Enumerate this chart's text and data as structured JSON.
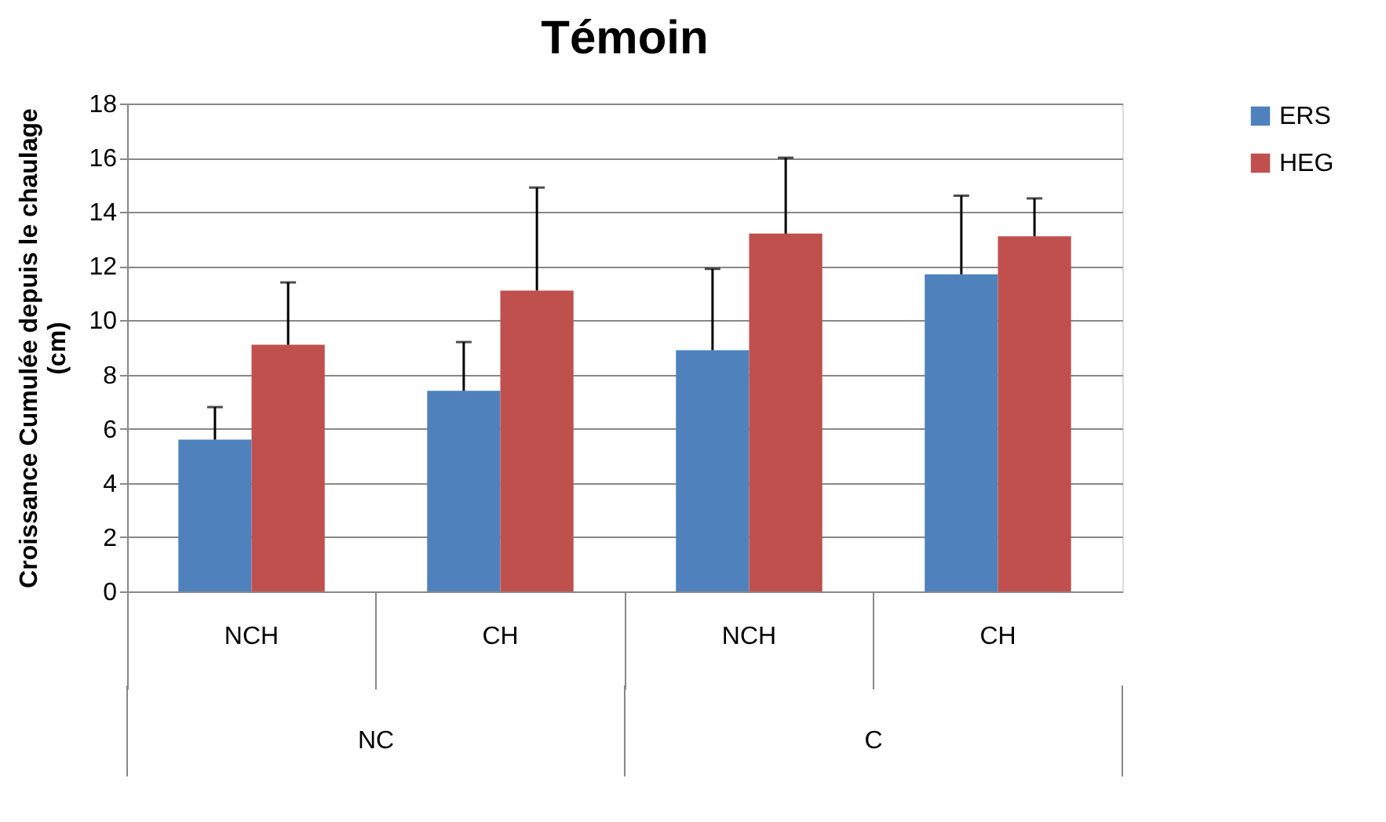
{
  "chart_data": {
    "type": "bar",
    "title": "Témoin",
    "ylabel": "Croissance Cumulée depuis le chaulage (cm)",
    "categories": [
      "NCH",
      "CH",
      "NCH",
      "CH"
    ],
    "annotations": [
      "NC",
      "C"
    ],
    "series": [
      {
        "name": "ERS",
        "color": "#4f81bd",
        "values": [
          5.6,
          7.4,
          8.9,
          11.7
        ],
        "errors": [
          [
            5.6,
            6.8
          ],
          [
            7.4,
            9.2
          ],
          [
            8.9,
            11.9
          ],
          [
            11.7,
            14.6
          ]
        ]
      },
      {
        "name": "HEG",
        "color": "#c0504d",
        "values": [
          9.1,
          11.1,
          13.2,
          13.1
        ],
        "errors": [
          [
            9.1,
            11.4
          ],
          [
            11.1,
            14.9
          ],
          [
            13.2,
            16.0
          ],
          [
            13.1,
            14.5
          ]
        ]
      }
    ],
    "ylim": [
      0,
      18
    ],
    "yticks": [
      0,
      2,
      4,
      6,
      8,
      10,
      12,
      14,
      16,
      18
    ],
    "grid": "y",
    "legend": "top right"
  }
}
